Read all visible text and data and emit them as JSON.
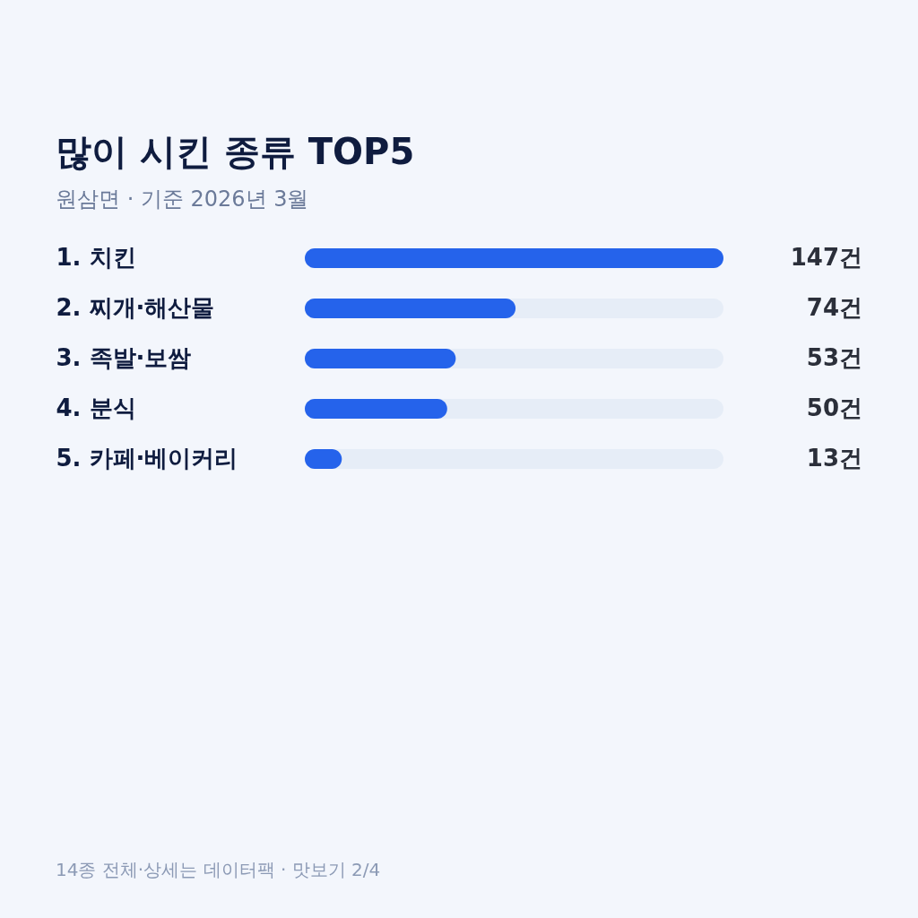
{
  "chart_data": {
    "type": "bar",
    "orientation": "horizontal",
    "title": "많이 시킨 종류 TOP5",
    "subtitle": "원삼면 · 기준 2026년 3월",
    "categories": [
      "1. 치킨",
      "2. 찌개·해산물",
      "3. 족발·보쌈",
      "4. 분식",
      "5. 카페·베이커리"
    ],
    "values": [
      147,
      74,
      53,
      50,
      13
    ],
    "color": "#2563eb",
    "value_labels": [
      "147건",
      "74건",
      "53건",
      "50건",
      "13건"
    ],
    "xlim": [
      0,
      147
    ],
    "tick_labels": "y",
    "annotations": [
      "14종 전체·상세는 데이터팩 · 맛보기 2/4"
    ]
  }
}
